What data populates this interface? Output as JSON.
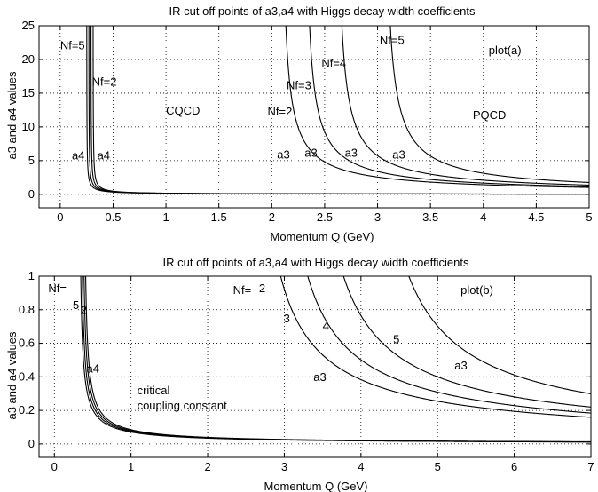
{
  "chart_data": [
    {
      "type": "line",
      "id": "a",
      "title": "IR cut off points of a3,a4 with Higgs decay width coefficients",
      "xlabel": "Momentum Q (GeV)",
      "ylabel": "a3 and a4 values",
      "xlim": [
        -0.2,
        5
      ],
      "ylim": [
        -2,
        25
      ],
      "xticks": [
        0,
        0.5,
        1,
        1.5,
        2,
        2.5,
        3,
        3.5,
        4,
        4.5,
        5
      ],
      "xtick_labels": [
        "0",
        "0.5",
        "1",
        "1.5",
        "2",
        "2.5",
        "3",
        "3.5",
        "4",
        "4.5",
        "5"
      ],
      "yticks": [
        0,
        5,
        10,
        15,
        20,
        25
      ],
      "ytick_labels": [
        "0",
        "5",
        "10",
        "15",
        "20",
        "25"
      ],
      "grid": true,
      "series": [
        {
          "name": "a4 Nf=5",
          "kind": "a4",
          "cutoff": 0.25,
          "scale": 0.11
        },
        {
          "name": "a4 Nf=4",
          "kind": "a4",
          "cutoff": 0.27,
          "scale": 0.115
        },
        {
          "name": "a4 Nf=3",
          "kind": "a4",
          "cutoff": 0.29,
          "scale": 0.12
        },
        {
          "name": "a4 Nf=2",
          "kind": "a4",
          "cutoff": 0.31,
          "scale": 0.125
        },
        {
          "name": "a3 Nf=2",
          "kind": "a3",
          "cutoff": 2.08,
          "scale": 2.4
        },
        {
          "name": "a3 Nf=3",
          "kind": "a3",
          "cutoff": 2.3,
          "scale": 2.55
        },
        {
          "name": "a3 Nf=4",
          "kind": "a3",
          "cutoff": 2.6,
          "scale": 2.75
        },
        {
          "name": "a3 Nf=5",
          "kind": "a3",
          "cutoff": 3.05,
          "scale": 3.0
        }
      ],
      "annotations": [
        {
          "text": "Nf=5",
          "x": 0.0,
          "y": 21.5
        },
        {
          "text": "Nf=2",
          "x": 0.3,
          "y": 16.1
        },
        {
          "text": "CQCD",
          "x": 1.0,
          "y": 11.8
        },
        {
          "text": "a4",
          "x": 0.11,
          "y": 5.2
        },
        {
          "text": "a4",
          "x": 0.35,
          "y": 5.2
        },
        {
          "text": "Nf=2",
          "x": 1.96,
          "y": 11.7
        },
        {
          "text": "Nf=3",
          "x": 2.14,
          "y": 15.6
        },
        {
          "text": "Nf=4",
          "x": 2.47,
          "y": 18.9
        },
        {
          "text": "Nf=5",
          "x": 3.02,
          "y": 22.3
        },
        {
          "text": "plot(a)",
          "x": 4.05,
          "y": 20.8
        },
        {
          "text": "PQCD",
          "x": 3.9,
          "y": 11.2
        },
        {
          "text": "a3",
          "x": 2.05,
          "y": 5.3
        },
        {
          "text": "a3",
          "x": 2.31,
          "y": 5.6
        },
        {
          "text": "a3",
          "x": 2.69,
          "y": 5.6
        },
        {
          "text": "a3",
          "x": 3.14,
          "y": 5.3
        }
      ]
    },
    {
      "type": "line",
      "id": "b",
      "title": "IR cut off points of a3,a4 with Higgs decay width coefficients",
      "xlabel": "Momentum Q (GeV)",
      "ylabel": "a3 and a4 values",
      "xlim": [
        -0.2,
        7
      ],
      "ylim": [
        -0.08,
        1
      ],
      "xticks": [
        0,
        1,
        2,
        3,
        4,
        5,
        6,
        7
      ],
      "xtick_labels": [
        "0",
        "1",
        "2",
        "3",
        "4",
        "5",
        "6",
        "7"
      ],
      "yticks": [
        0,
        0.2,
        0.4,
        0.6,
        0.8,
        1
      ],
      "ytick_labels": [
        "0",
        "0.2",
        "0.4",
        "0.6",
        "0.8",
        "1"
      ],
      "grid": true,
      "series": [
        {
          "name": "a4 Nf=5",
          "kind": "a4",
          "cutoff": 0.32,
          "scale": 0.052
        },
        {
          "name": "a4 Nf=4",
          "kind": "a4",
          "cutoff": 0.34,
          "scale": 0.054
        },
        {
          "name": "a4 Nf=3",
          "kind": "a4",
          "cutoff": 0.36,
          "scale": 0.056
        },
        {
          "name": "a4 Nf=2",
          "kind": "a4",
          "cutoff": 0.38,
          "scale": 0.058
        },
        {
          "name": "a3 Nf=2",
          "kind": "a3",
          "cutoff": 2.5,
          "scale": 0.53
        },
        {
          "name": "a3 Nf=3",
          "kind": "a3",
          "cutoff": 2.8,
          "scale": 0.58
        },
        {
          "name": "a3 Nf=4",
          "kind": "a3",
          "cutoff": 3.2,
          "scale": 0.64
        },
        {
          "name": "a3 Nf=5",
          "kind": "a3",
          "cutoff": 3.95,
          "scale": 0.73
        }
      ],
      "annotations": [
        {
          "text": "Nf=",
          "x": -0.08,
          "y": 0.905
        },
        {
          "text": "5",
          "x": 0.24,
          "y": 0.805
        },
        {
          "text": "2",
          "x": 0.34,
          "y": 0.775
        },
        {
          "text": "a4",
          "x": 0.42,
          "y": 0.425
        },
        {
          "text": "critical",
          "x": 1.08,
          "y": 0.295
        },
        {
          "text": "coupling constant",
          "x": 1.08,
          "y": 0.205
        },
        {
          "text": "Nf=",
          "x": 2.33,
          "y": 0.895
        },
        {
          "text": "2",
          "x": 2.67,
          "y": 0.905
        },
        {
          "text": "3",
          "x": 2.99,
          "y": 0.725
        },
        {
          "text": "4",
          "x": 3.5,
          "y": 0.68
        },
        {
          "text": "5",
          "x": 4.42,
          "y": 0.6
        },
        {
          "text": "a3",
          "x": 3.38,
          "y": 0.375
        },
        {
          "text": "a3",
          "x": 5.22,
          "y": 0.445
        },
        {
          "text": "plot(b)",
          "x": 5.3,
          "y": 0.895
        }
      ]
    }
  ]
}
